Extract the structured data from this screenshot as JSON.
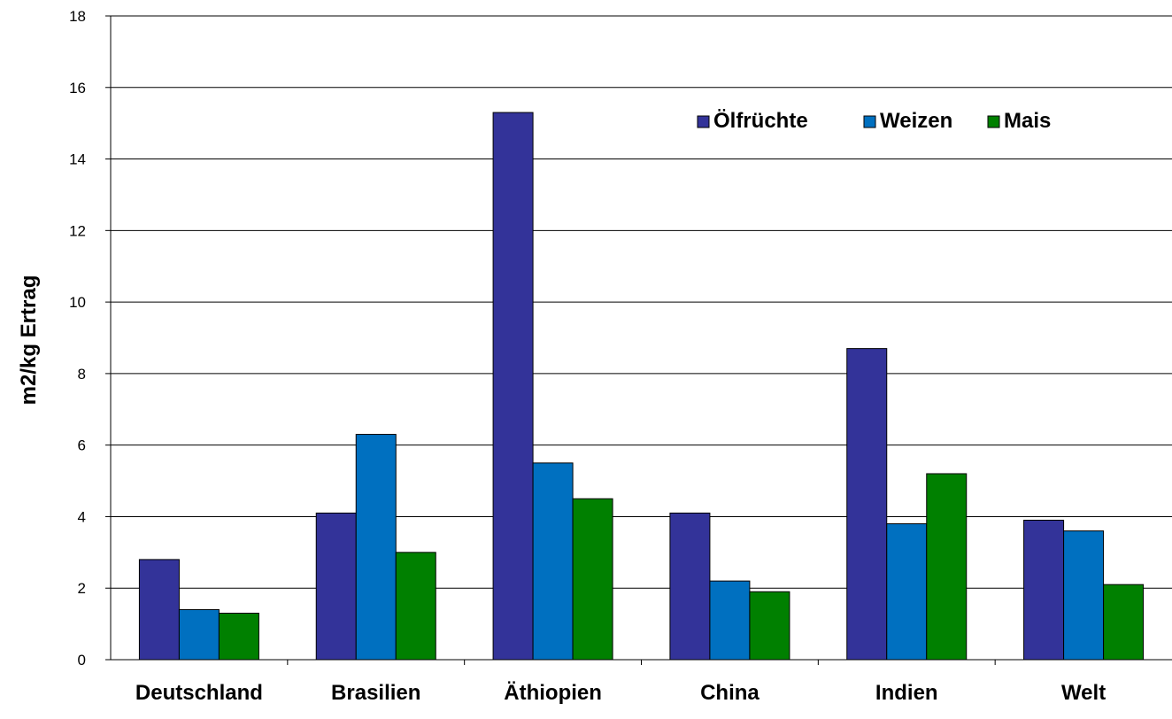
{
  "chart_data": {
    "type": "bar",
    "title": "",
    "xlabel": "",
    "ylabel": "m2/kg Ertrag",
    "ylim": [
      0,
      18
    ],
    "yticks": [
      0,
      2,
      4,
      6,
      8,
      10,
      12,
      14,
      16,
      18
    ],
    "grid": true,
    "legend_position": "top-right",
    "categories": [
      "Deutschland",
      "Brasilien",
      "Äthiopien",
      "China",
      "Indien",
      "Welt"
    ],
    "series": [
      {
        "name": "Ölfrüchte",
        "color": "#333399",
        "values": [
          2.8,
          4.1,
          15.3,
          4.1,
          8.7,
          3.9
        ]
      },
      {
        "name": "Weizen",
        "color": "#0070C0",
        "values": [
          1.4,
          6.3,
          5.5,
          2.2,
          3.8,
          3.6
        ]
      },
      {
        "name": "Mais",
        "color": "#008000",
        "values": [
          1.3,
          3.0,
          4.5,
          1.9,
          5.2,
          2.1
        ]
      }
    ]
  }
}
